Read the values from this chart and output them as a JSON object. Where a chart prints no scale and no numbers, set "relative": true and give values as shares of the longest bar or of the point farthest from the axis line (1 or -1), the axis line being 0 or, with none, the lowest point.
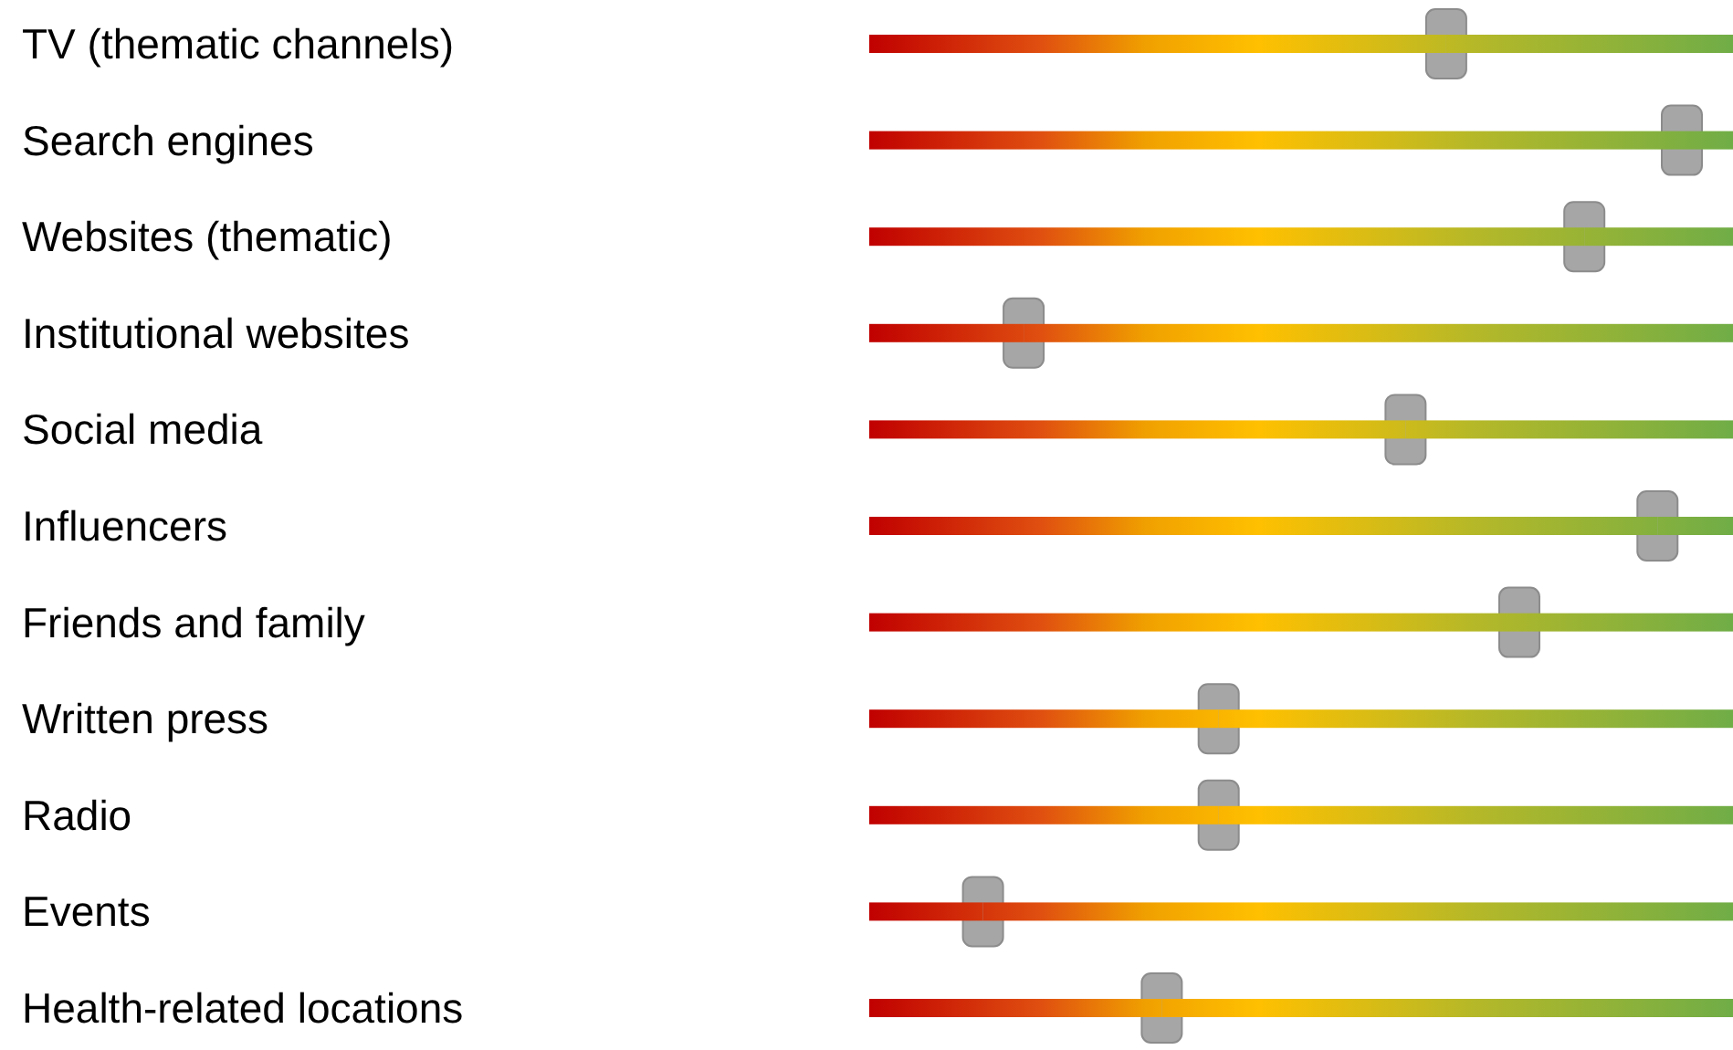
{
  "chart_data": {
    "type": "bar",
    "orientation": "horizontal",
    "relative": true,
    "categories": [
      "TV (thematic channels)",
      "Search engines",
      "Websites (thematic)",
      "Institutional websites",
      "Social media",
      "Influencers",
      "Friends and family",
      "Written press",
      "Radio",
      "Events",
      "Health-related locations"
    ],
    "series": [
      {
        "values": [
          0.71,
          1,
          0.88,
          0.19,
          0.66,
          0.97,
          0.8,
          0.43,
          0.43,
          0.14,
          0.36
        ]
      }
    ],
    "grid": false,
    "marker": "square"
  }
}
